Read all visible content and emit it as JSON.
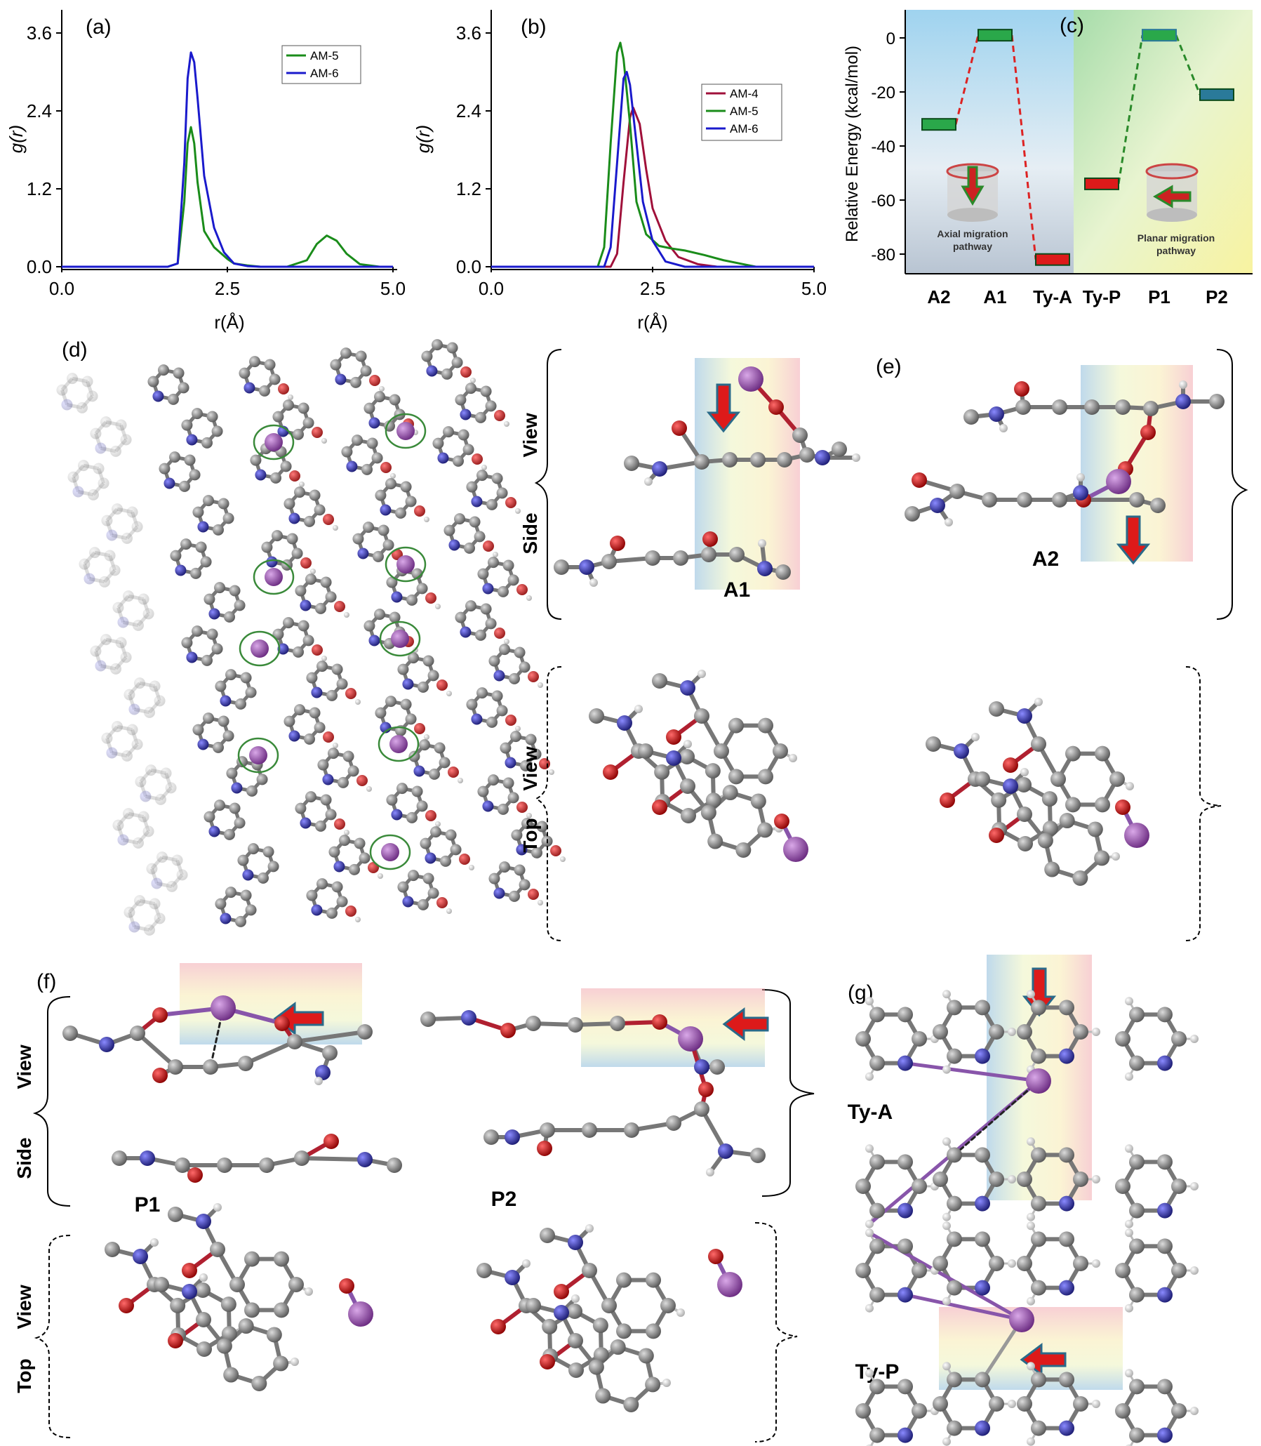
{
  "panel_labels": {
    "a": "(a)",
    "b": "(b)",
    "c": "(c)",
    "d": "(d)",
    "e": "(e)",
    "f": "(f)",
    "g": "(g)"
  },
  "chart_data": [
    {
      "type": "line",
      "panel": "(a)",
      "xlabel": "r(Å)",
      "ylabel": "g(r)",
      "xlim": [
        0,
        5
      ],
      "ylim": [
        0,
        3.6
      ],
      "xticks": [
        "0.0",
        "2.5",
        "5.0"
      ],
      "yticks": [
        "0.0",
        "1.2",
        "2.4",
        "3.6"
      ],
      "legend_position": "top-right",
      "series": [
        {
          "name": "AM-5",
          "color": "#1a8c1a",
          "x": [
            0,
            1.6,
            1.75,
            1.85,
            1.9,
            1.95,
            2.0,
            2.05,
            2.15,
            2.3,
            2.5,
            2.6,
            2.8,
            3.0,
            3.4,
            3.7,
            3.85,
            4.0,
            4.15,
            4.3,
            4.5,
            4.8,
            5.0
          ],
          "y": [
            0,
            0,
            0.05,
            1.0,
            1.9,
            2.15,
            1.9,
            1.3,
            0.55,
            0.3,
            0.12,
            0.05,
            0.02,
            0,
            0,
            0.1,
            0.35,
            0.48,
            0.4,
            0.2,
            0.04,
            0,
            0
          ]
        },
        {
          "name": "AM-6",
          "color": "#1a1acc",
          "x": [
            0,
            1.6,
            1.75,
            1.85,
            1.9,
            1.95,
            2.0,
            2.05,
            2.15,
            2.3,
            2.45,
            2.6,
            2.8,
            3.0,
            5.0
          ],
          "y": [
            0,
            0,
            0.05,
            1.6,
            2.9,
            3.3,
            3.15,
            2.6,
            1.4,
            0.6,
            0.22,
            0.05,
            0.01,
            0,
            0
          ]
        }
      ]
    },
    {
      "type": "line",
      "panel": "(b)",
      "xlabel": "r(Å)",
      "ylabel": "g(r)",
      "xlim": [
        0,
        5
      ],
      "ylim": [
        0,
        3.6
      ],
      "xticks": [
        "0.0",
        "2.5",
        "5.0"
      ],
      "yticks": [
        "0.0",
        "1.2",
        "2.4",
        "3.6"
      ],
      "legend_position": "top-right",
      "series": [
        {
          "name": "AM-4",
          "color": "#a0103a",
          "x": [
            0,
            1.85,
            1.95,
            2.05,
            2.15,
            2.2,
            2.3,
            2.4,
            2.5,
            2.7,
            2.9,
            3.2,
            3.5,
            5.0
          ],
          "y": [
            0,
            0,
            0.2,
            1.3,
            2.3,
            2.45,
            2.2,
            1.5,
            0.9,
            0.4,
            0.15,
            0.04,
            0,
            0
          ]
        },
        {
          "name": "AM-5",
          "color": "#1a8c1a",
          "x": [
            0,
            1.65,
            1.75,
            1.85,
            1.95,
            2.0,
            2.05,
            2.15,
            2.25,
            2.4,
            2.6,
            2.8,
            3.0,
            3.3,
            3.6,
            3.9,
            4.1,
            5.0
          ],
          "y": [
            0,
            0,
            0.3,
            1.9,
            3.3,
            3.45,
            3.2,
            2.2,
            1.0,
            0.5,
            0.32,
            0.28,
            0.25,
            0.18,
            0.1,
            0.04,
            0,
            0
          ]
        },
        {
          "name": "AM-6",
          "color": "#1a1acc",
          "x": [
            0,
            1.75,
            1.85,
            1.95,
            2.05,
            2.1,
            2.15,
            2.25,
            2.35,
            2.5,
            2.7,
            3.0,
            5.0
          ],
          "y": [
            0,
            0,
            0.3,
            1.6,
            2.9,
            3.0,
            2.8,
            1.9,
            1.0,
            0.4,
            0.08,
            0,
            0
          ]
        }
      ]
    },
    {
      "type": "line",
      "panel": "(c)",
      "ylabel": "Relative Energy (kcal/mol)",
      "ylim": [
        -90,
        10
      ],
      "yticks": [
        "0",
        "-20",
        "-40",
        "-60",
        "-80"
      ],
      "categories": [
        "A2",
        "A1",
        "Ty-A",
        "Ty-P",
        "P1",
        "P2"
      ],
      "series": [
        {
          "name": "",
          "color": "#dd2222",
          "values": [
            -32,
            1,
            -82,
            null,
            null,
            null
          ]
        },
        {
          "name": "",
          "color": "#2a8a2a",
          "values": [
            null,
            null,
            null,
            -54,
            1,
            -21
          ]
        }
      ],
      "annotations": [
        "Axial migration pathway",
        "Planar migration pathway"
      ]
    }
  ],
  "structure_labels": {
    "side_view": "Side View",
    "top_view": "Top View",
    "side": "Side",
    "top": "Top",
    "view": "View",
    "A1": "A1",
    "A2": "A2",
    "P1": "P1",
    "P2": "P2",
    "TyA": "Ty-A",
    "TyP": "Ty-P"
  },
  "colors": {
    "carbon": "#808080",
    "oxygen": "#cc1111",
    "nitrogen": "#3333aa",
    "hydrogen": "#eeeeee",
    "metal": "#9955aa"
  }
}
